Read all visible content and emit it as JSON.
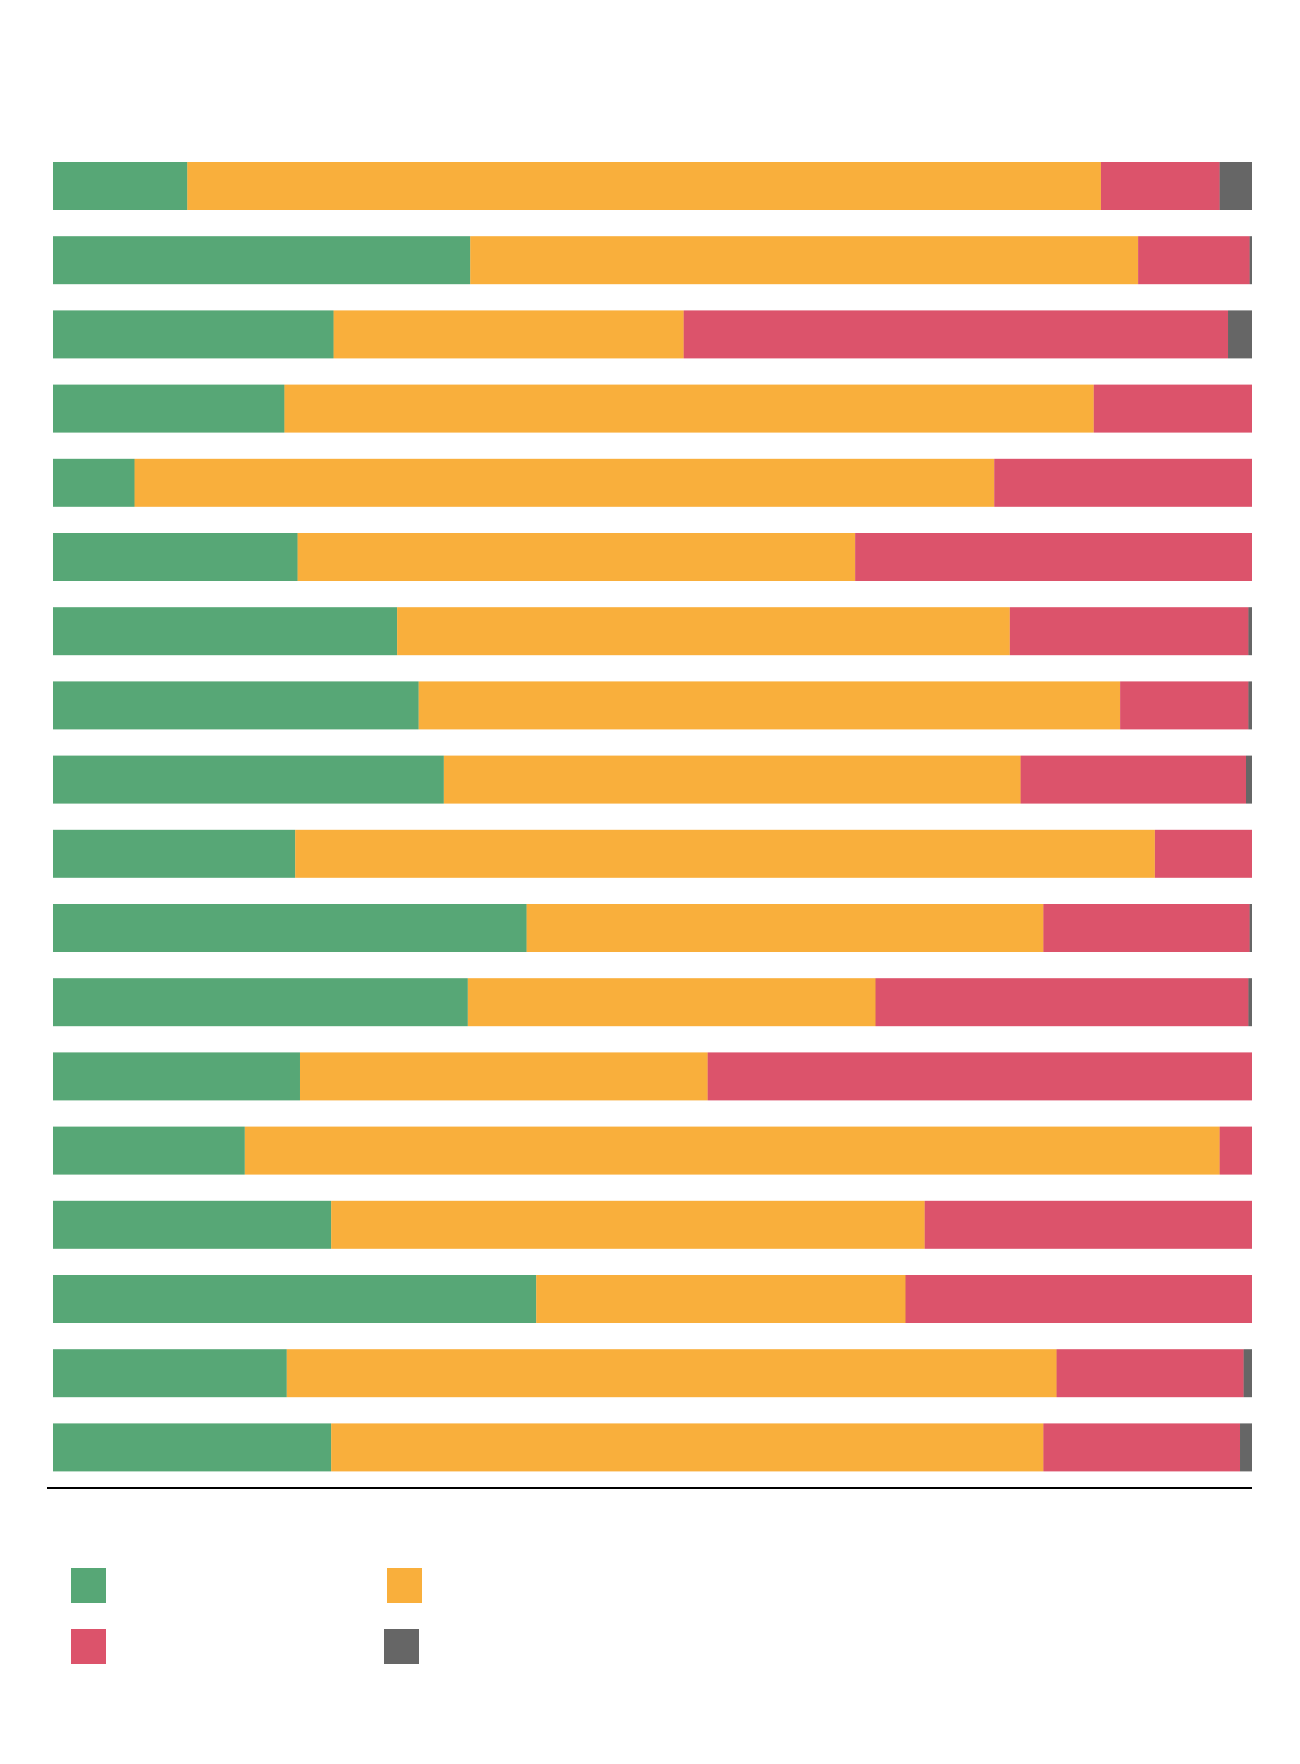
{
  "chart_data": {
    "type": "bar",
    "orientation": "horizontal",
    "stacked": true,
    "normalized": true,
    "title": "",
    "xlabel": "",
    "ylabel": "",
    "xlim": [
      0,
      100
    ],
    "grid": false,
    "legend_position": "bottom-left",
    "categories": [
      "",
      "",
      "",
      "",
      "",
      "",
      "",
      "",
      "",
      "",
      "",
      "",
      "",
      "",
      "",
      "",
      "",
      ""
    ],
    "series": [
      {
        "name": "",
        "color": "#57a776",
        "values": [
          11.2,
          34.8,
          23.4,
          19.3,
          6.8,
          20.4,
          28.7,
          30.5,
          32.6,
          20.2,
          39.5,
          34.6,
          20.6,
          16.0,
          23.2,
          40.3,
          19.5,
          23.2
        ]
      },
      {
        "name": "",
        "color": "#f9af3c",
        "values": [
          76.2,
          55.7,
          29.2,
          67.5,
          71.7,
          46.5,
          51.1,
          58.5,
          48.1,
          71.7,
          43.1,
          34.0,
          34.0,
          81.3,
          49.5,
          30.8,
          64.2,
          59.4
        ]
      },
      {
        "name": "",
        "color": "#dc536b",
        "values": [
          9.9,
          9.3,
          45.4,
          13.2,
          21.5,
          33.1,
          19.9,
          10.7,
          18.8,
          8.1,
          17.2,
          31.1,
          45.4,
          2.7,
          27.3,
          28.9,
          15.6,
          16.4
        ]
      },
      {
        "name": "",
        "color": "#666666",
        "values": [
          2.7,
          0.2,
          2.0,
          0.0,
          0.0,
          0.0,
          0.3,
          0.3,
          0.5,
          0.0,
          0.2,
          0.3,
          0.0,
          0.0,
          0.0,
          0.0,
          0.7,
          1.0
        ]
      }
    ]
  }
}
